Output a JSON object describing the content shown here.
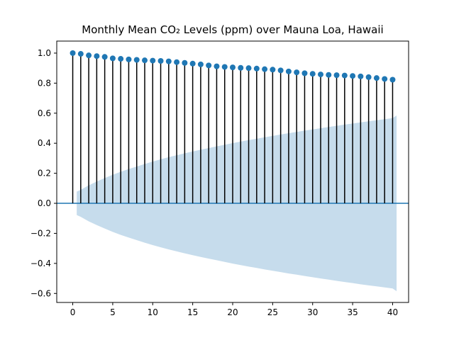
{
  "chart_data": {
    "type": "stem",
    "title": "Monthly Mean CO₂ Levels (ppm) over Mauna Loa, Hawaii",
    "xlabel": "",
    "ylabel": "",
    "xlim": [
      -2,
      42
    ],
    "ylim": [
      -0.66,
      1.08
    ],
    "xticks": [
      0,
      5,
      10,
      15,
      20,
      25,
      30,
      35,
      40
    ],
    "yticks": [
      -0.6,
      -0.4,
      -0.2,
      0.0,
      0.2,
      0.4,
      0.6,
      0.8,
      1.0
    ],
    "lags": [
      0,
      1,
      2,
      3,
      4,
      5,
      6,
      7,
      8,
      9,
      10,
      11,
      12,
      13,
      14,
      15,
      16,
      17,
      18,
      19,
      20,
      21,
      22,
      23,
      24,
      25,
      26,
      27,
      28,
      29,
      30,
      31,
      32,
      33,
      34,
      35,
      36,
      37,
      38,
      39,
      40
    ],
    "acf": [
      1.0,
      0.995,
      0.985,
      0.98,
      0.975,
      0.965,
      0.962,
      0.958,
      0.955,
      0.952,
      0.95,
      0.948,
      0.945,
      0.94,
      0.935,
      0.93,
      0.925,
      0.918,
      0.912,
      0.908,
      0.905,
      0.902,
      0.9,
      0.897,
      0.893,
      0.89,
      0.885,
      0.878,
      0.872,
      0.866,
      0.862,
      0.858,
      0.855,
      0.853,
      0.851,
      0.848,
      0.845,
      0.84,
      0.834,
      0.828,
      0.823
    ],
    "confint_lags": [
      0.5,
      1,
      2,
      3,
      4,
      5,
      6,
      7,
      8,
      9,
      10,
      11,
      12,
      13,
      14,
      15,
      16,
      17,
      18,
      19,
      20,
      21,
      22,
      23,
      24,
      25,
      26,
      27,
      28,
      29,
      30,
      31,
      32,
      33,
      34,
      35,
      36,
      37,
      38,
      39,
      40,
      40.5
    ],
    "confint_upper": [
      0.078,
      0.09,
      0.12,
      0.145,
      0.168,
      0.19,
      0.21,
      0.228,
      0.245,
      0.262,
      0.278,
      0.293,
      0.307,
      0.32,
      0.333,
      0.345,
      0.357,
      0.368,
      0.379,
      0.39,
      0.401,
      0.411,
      0.421,
      0.43,
      0.44,
      0.449,
      0.458,
      0.467,
      0.475,
      0.484,
      0.492,
      0.5,
      0.508,
      0.516,
      0.524,
      0.531,
      0.539,
      0.546,
      0.553,
      0.56,
      0.567,
      0.585
    ],
    "confint_lower": [
      -0.078,
      -0.09,
      -0.12,
      -0.145,
      -0.168,
      -0.19,
      -0.21,
      -0.228,
      -0.245,
      -0.262,
      -0.278,
      -0.293,
      -0.307,
      -0.32,
      -0.333,
      -0.345,
      -0.357,
      -0.368,
      -0.379,
      -0.39,
      -0.401,
      -0.411,
      -0.421,
      -0.43,
      -0.44,
      -0.449,
      -0.458,
      -0.467,
      -0.475,
      -0.484,
      -0.492,
      -0.5,
      -0.508,
      -0.516,
      -0.524,
      -0.531,
      -0.539,
      -0.546,
      -0.553,
      -0.56,
      -0.567,
      -0.585
    ],
    "zero_line": 0,
    "grid": false,
    "colors": {
      "marker": "#1f77b4",
      "stem": "#000000",
      "confint_fill": "#c6dcec",
      "zero_line": "#1f77b4"
    }
  }
}
